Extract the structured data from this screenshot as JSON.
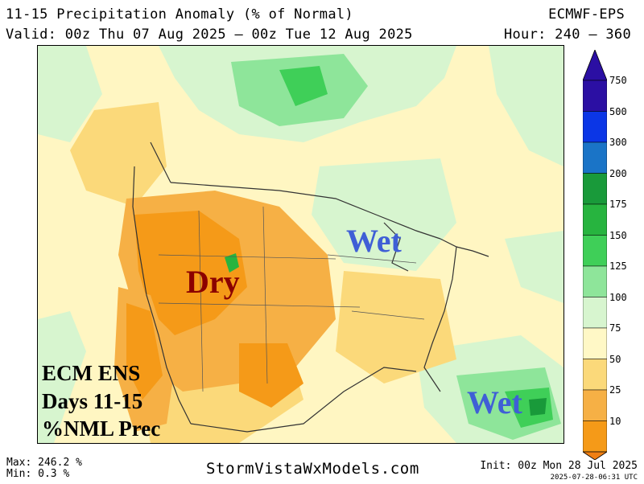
{
  "header": {
    "title": "11-15 Precipitation Anomaly (% of Normal)",
    "valid": "Valid: 00z Thu 07 Aug 2025 – 00z Tue 12 Aug 2025",
    "model": "ECMWF-EPS",
    "hour": "Hour: 240 – 360"
  },
  "annotations": {
    "dry": "Dry",
    "wet_east": "Wet",
    "wet_caribbean": "Wet"
  },
  "info_box": {
    "line1": "ECM ENS",
    "line2": "Days 11-15",
    "line3": "%NML Prec"
  },
  "legend": {
    "levels": [
      {
        "value": "750",
        "color": "#2b0fa3"
      },
      {
        "value": "500",
        "color": "#0b36e6"
      },
      {
        "value": "300",
        "color": "#1a74c7"
      },
      {
        "value": "200",
        "color": "#199a3a"
      },
      {
        "value": "175",
        "color": "#27b43f"
      },
      {
        "value": "150",
        "color": "#3fcf58"
      },
      {
        "value": "125",
        "color": "#8ee59a"
      },
      {
        "value": "100",
        "color": "#d7f5cf"
      },
      {
        "value": "75",
        "color": "#fff8c6"
      },
      {
        "value": "50",
        "color": "#fbd97a"
      },
      {
        "value": "25",
        "color": "#f6b045"
      },
      {
        "value": "10",
        "color": "#f59a18"
      }
    ],
    "bottom_color": "#f07f12"
  },
  "footer": {
    "max": "Max: 246.2 %",
    "min": "Min: 0.3 %",
    "site": "StormVistaWxModels.com",
    "init": "Init: 00z Mon 28 Jul 2025",
    "stamp": "2025-07-28-06:31 UTC"
  }
}
